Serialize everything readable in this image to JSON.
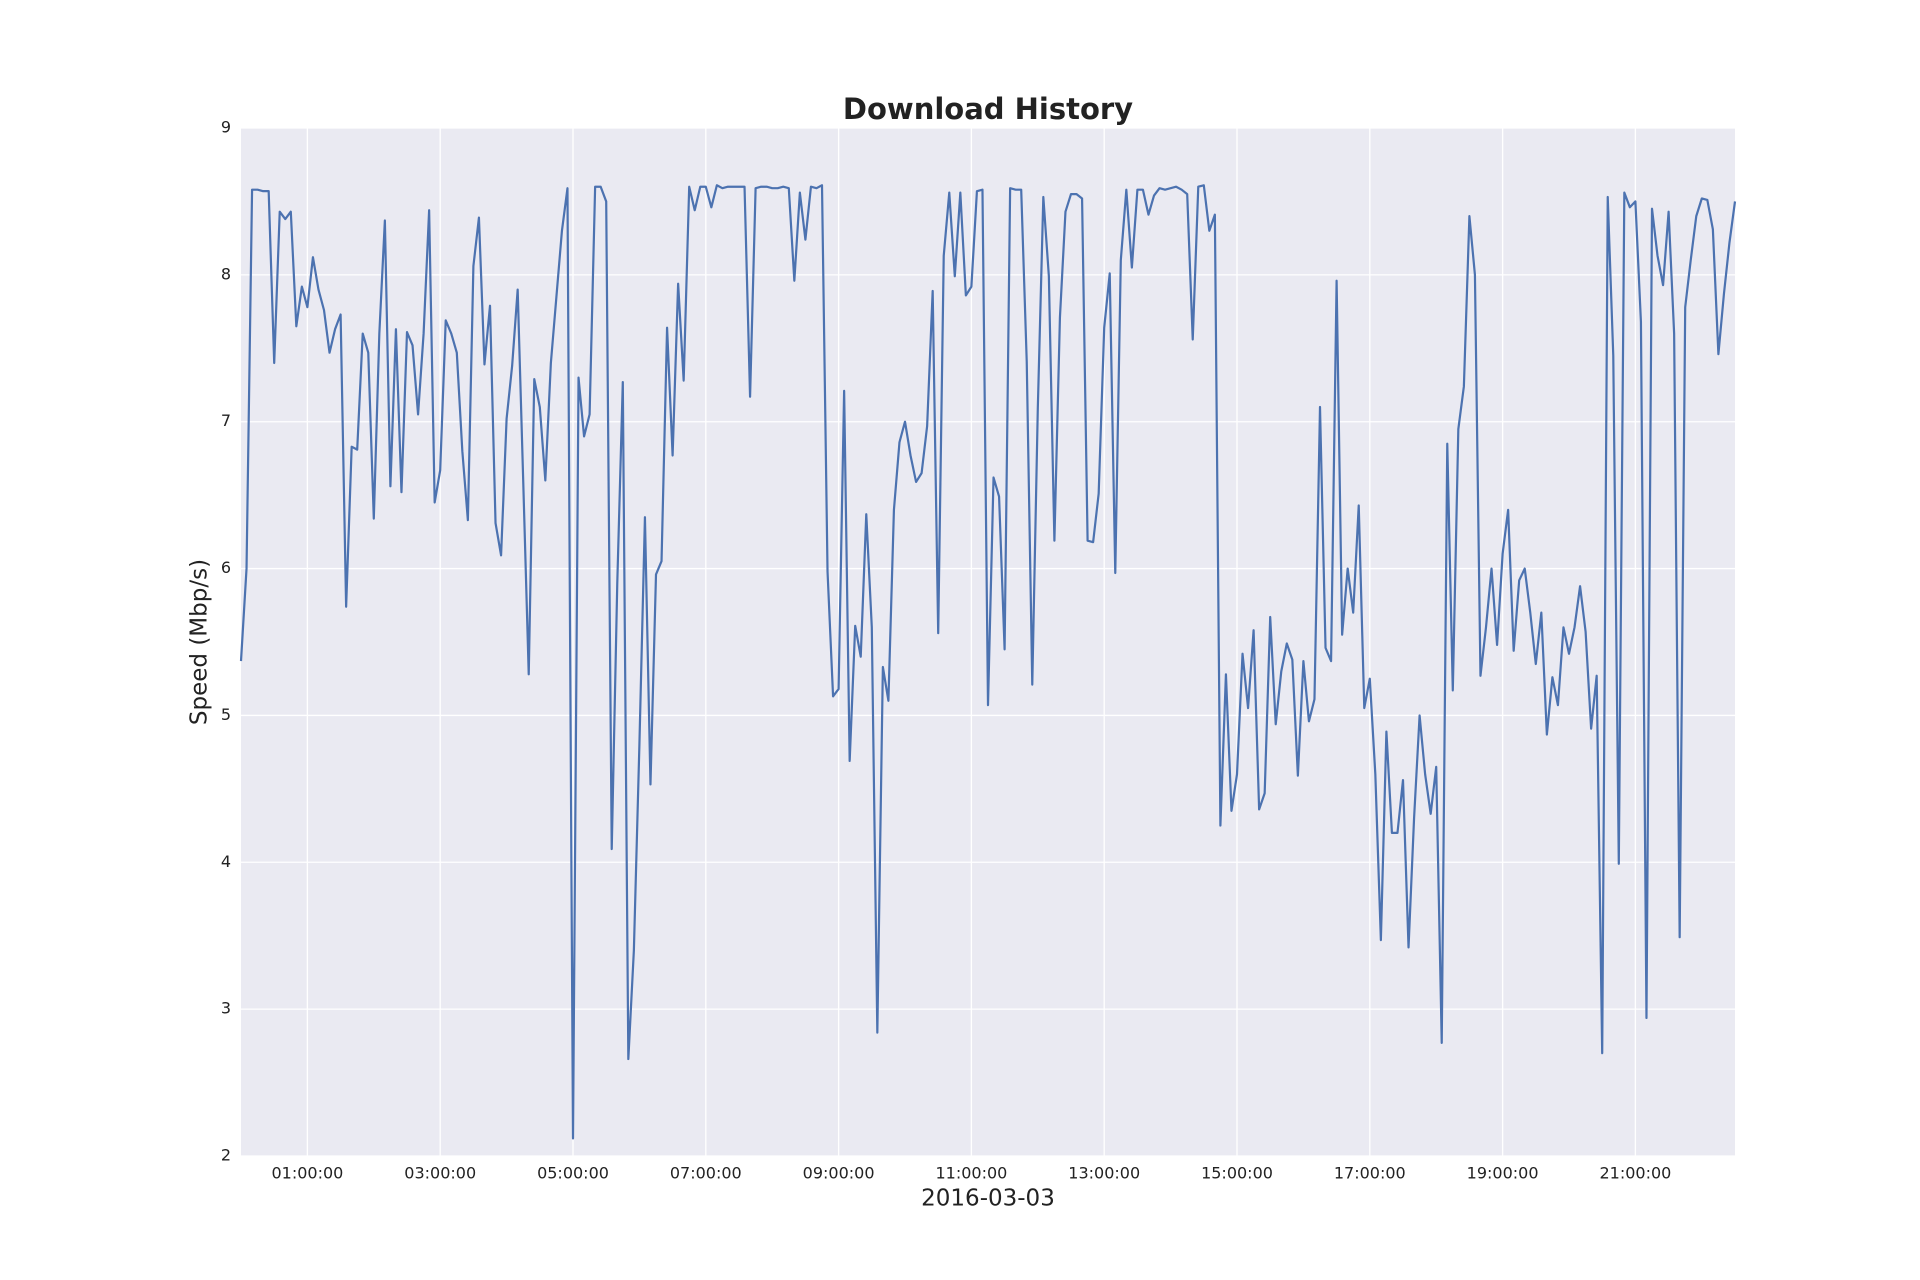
{
  "chart_data": {
    "type": "line",
    "title": "Download History",
    "xlabel": "2016-03-03",
    "ylabel": "Speed (Mbp/s)",
    "xlim": [
      "00:00:00",
      "22:30:00"
    ],
    "xticks": [
      "01:00:00",
      "03:00:00",
      "05:00:00",
      "07:00:00",
      "09:00:00",
      "11:00:00",
      "13:00:00",
      "15:00:00",
      "17:00:00",
      "19:00:00",
      "21:00:00"
    ],
    "ylim": [
      2,
      9
    ],
    "yticks": [
      2,
      3,
      4,
      5,
      6,
      7,
      8,
      9
    ],
    "grid": true,
    "x": [
      "00:00:00",
      "00:05:00",
      "00:10:00",
      "00:15:00",
      "00:20:00",
      "00:25:00",
      "00:30:00",
      "00:35:00",
      "00:40:00",
      "00:45:00",
      "00:50:00",
      "00:55:00",
      "01:00:00",
      "01:05:00",
      "01:10:00",
      "01:15:00",
      "01:20:00",
      "01:25:00",
      "01:30:00",
      "01:35:00",
      "01:40:00",
      "01:45:00",
      "01:50:00",
      "01:55:00",
      "02:00:00",
      "02:05:00",
      "02:10:00",
      "02:15:00",
      "02:20:00",
      "02:25:00",
      "02:30:00",
      "02:35:00",
      "02:40:00",
      "02:45:00",
      "02:50:00",
      "02:55:00",
      "03:00:00",
      "03:05:00",
      "03:10:00",
      "03:15:00",
      "03:20:00",
      "03:25:00",
      "03:30:00",
      "03:35:00",
      "03:40:00",
      "03:45:00",
      "03:50:00",
      "03:55:00",
      "04:00:00",
      "04:05:00",
      "04:10:00",
      "04:15:00",
      "04:20:00",
      "04:25:00",
      "04:30:00",
      "04:35:00",
      "04:40:00",
      "04:45:00",
      "04:50:00",
      "04:55:00",
      "05:00:00",
      "05:05:00",
      "05:10:00",
      "05:15:00",
      "05:20:00",
      "05:25:00",
      "05:30:00",
      "05:35:00",
      "05:40:00",
      "05:45:00",
      "05:50:00",
      "05:55:00",
      "06:00:00",
      "06:05:00",
      "06:10:00",
      "06:15:00",
      "06:20:00",
      "06:25:00",
      "06:30:00",
      "06:35:00",
      "06:40:00",
      "06:45:00",
      "06:50:00",
      "06:55:00",
      "07:00:00",
      "07:05:00",
      "07:10:00",
      "07:15:00",
      "07:20:00",
      "07:25:00",
      "07:30:00",
      "07:35:00",
      "07:40:00",
      "07:45:00",
      "07:50:00",
      "07:55:00",
      "08:00:00",
      "08:05:00",
      "08:10:00",
      "08:15:00",
      "08:20:00",
      "08:25:00",
      "08:30:00",
      "08:35:00",
      "08:40:00",
      "08:45:00",
      "08:50:00",
      "08:55:00",
      "09:00:00",
      "09:05:00",
      "09:10:00",
      "09:15:00",
      "09:20:00",
      "09:25:00",
      "09:30:00",
      "09:35:00",
      "09:40:00",
      "09:45:00",
      "09:50:00",
      "09:55:00",
      "10:00:00",
      "10:05:00",
      "10:10:00",
      "10:15:00",
      "10:20:00",
      "10:25:00",
      "10:30:00",
      "10:35:00",
      "10:40:00",
      "10:45:00",
      "10:50:00",
      "10:55:00",
      "11:00:00",
      "11:05:00",
      "11:10:00",
      "11:15:00",
      "11:20:00",
      "11:25:00",
      "11:30:00",
      "11:35:00",
      "11:40:00",
      "11:45:00",
      "11:50:00",
      "11:55:00",
      "12:00:00",
      "12:05:00",
      "12:10:00",
      "12:15:00",
      "12:20:00",
      "12:25:00",
      "12:30:00",
      "12:35:00",
      "12:40:00",
      "12:45:00",
      "12:50:00",
      "12:55:00",
      "13:00:00",
      "13:05:00",
      "13:10:00",
      "13:15:00",
      "13:20:00",
      "13:25:00",
      "13:30:00",
      "13:35:00",
      "13:40:00",
      "13:45:00",
      "13:50:00",
      "13:55:00",
      "14:00:00",
      "14:05:00",
      "14:10:00",
      "14:15:00",
      "14:20:00",
      "14:25:00",
      "14:30:00",
      "14:35:00",
      "14:40:00",
      "14:45:00",
      "14:50:00",
      "14:55:00",
      "15:00:00",
      "15:05:00",
      "15:10:00",
      "15:15:00",
      "15:20:00",
      "15:25:00",
      "15:30:00",
      "15:35:00",
      "15:40:00",
      "15:45:00",
      "15:50:00",
      "15:55:00",
      "16:00:00",
      "16:05:00",
      "16:10:00",
      "16:15:00",
      "16:20:00",
      "16:25:00",
      "16:30:00",
      "16:35:00",
      "16:40:00",
      "16:45:00",
      "16:50:00",
      "16:55:00",
      "17:00:00",
      "17:05:00",
      "17:10:00",
      "17:15:00",
      "17:20:00",
      "17:25:00",
      "17:30:00",
      "17:35:00",
      "17:40:00",
      "17:45:00",
      "17:50:00",
      "17:55:00",
      "18:00:00",
      "18:05:00",
      "18:10:00",
      "18:15:00",
      "18:20:00",
      "18:25:00",
      "18:30:00",
      "18:35:00",
      "18:40:00",
      "18:45:00",
      "18:50:00",
      "18:55:00",
      "19:00:00",
      "19:05:00",
      "19:10:00",
      "19:15:00",
      "19:20:00",
      "19:25:00",
      "19:30:00",
      "19:35:00",
      "19:40:00",
      "19:45:00",
      "19:50:00",
      "19:55:00",
      "20:00:00",
      "20:05:00",
      "20:10:00",
      "20:15:00",
      "20:20:00",
      "20:25:00",
      "20:30:00",
      "20:35:00",
      "20:40:00",
      "20:45:00",
      "20:50:00",
      "20:55:00",
      "21:00:00",
      "21:05:00",
      "21:10:00",
      "21:15:00",
      "21:20:00",
      "21:25:00",
      "21:30:00",
      "21:35:00",
      "21:40:00",
      "21:45:00",
      "21:50:00",
      "21:55:00",
      "22:00:00",
      "22:05:00",
      "22:10:00",
      "22:15:00",
      "22:20:00",
      "22:25:00",
      "22:30:00"
    ],
    "series": [
      {
        "color": "#4c72b0",
        "values": [
          5.37,
          6.0,
          8.58,
          8.58,
          8.57,
          8.57,
          7.4,
          8.43,
          8.38,
          8.43,
          7.65,
          7.92,
          7.78,
          8.12,
          7.9,
          7.76,
          7.47,
          7.63,
          7.73,
          5.74,
          6.83,
          6.81,
          7.6,
          7.47,
          6.34,
          7.6,
          8.37,
          6.56,
          7.63,
          6.52,
          7.61,
          7.52,
          7.05,
          7.6,
          8.44,
          6.45,
          6.67,
          7.69,
          7.6,
          7.47,
          6.8,
          6.33,
          8.06,
          8.39,
          7.39,
          7.79,
          6.31,
          6.09,
          7.02,
          7.38,
          7.9,
          6.6,
          5.28,
          7.29,
          7.1,
          6.6,
          7.4,
          7.85,
          8.3,
          8.59,
          2.12,
          7.3,
          6.9,
          7.05,
          8.6,
          8.6,
          8.5,
          4.09,
          5.9,
          7.27,
          2.66,
          3.4,
          4.8,
          6.35,
          4.53,
          5.96,
          6.05,
          7.64,
          6.77,
          7.94,
          7.28,
          8.6,
          8.44,
          8.6,
          8.6,
          8.46,
          8.61,
          8.59,
          8.6,
          8.6,
          8.6,
          8.6,
          7.17,
          8.59,
          8.6,
          8.6,
          8.59,
          8.59,
          8.6,
          8.59,
          7.96,
          8.56,
          8.24,
          8.6,
          8.59,
          8.61,
          5.98,
          5.13,
          5.18,
          7.21,
          4.69,
          5.61,
          5.4,
          6.37,
          5.6,
          2.84,
          5.33,
          5.1,
          6.4,
          6.86,
          7.0,
          6.77,
          6.59,
          6.65,
          6.97,
          7.89,
          5.56,
          8.13,
          8.56,
          7.99,
          8.56,
          7.86,
          7.92,
          8.57,
          8.58,
          5.07,
          6.62,
          6.49,
          5.45,
          8.59,
          8.58,
          8.58,
          7.41,
          5.21,
          7.09,
          8.53,
          7.99,
          6.19,
          7.71,
          8.43,
          8.55,
          8.55,
          8.52,
          6.19,
          6.18,
          6.51,
          7.64,
          8.01,
          5.97,
          8.1,
          8.58,
          8.05,
          8.58,
          8.58,
          8.41,
          8.54,
          8.59,
          8.58,
          8.59,
          8.6,
          8.58,
          8.55,
          7.56,
          8.6,
          8.61,
          8.3,
          8.41,
          4.25,
          5.28,
          4.35,
          4.6,
          5.42,
          5.05,
          5.58,
          4.36,
          4.47,
          5.67,
          4.94,
          5.3,
          5.49,
          5.38,
          4.59,
          5.37,
          4.96,
          5.11,
          7.1,
          5.46,
          5.37,
          7.96,
          5.55,
          6.0,
          5.7,
          6.43,
          5.05,
          5.25,
          4.6,
          3.47,
          4.89,
          4.2,
          4.2,
          4.56,
          3.42,
          4.3,
          5.0,
          4.6,
          4.33,
          4.65,
          2.77,
          6.85,
          5.17,
          6.95,
          7.24,
          8.4,
          8.0,
          5.27,
          5.6,
          6.0,
          5.48,
          6.1,
          6.4,
          5.44,
          5.92,
          6.0,
          5.7,
          5.35,
          5.7,
          4.87,
          5.26,
          5.07,
          5.6,
          5.42,
          5.6,
          5.88,
          5.57,
          4.91,
          5.27,
          2.7,
          8.53,
          7.45,
          3.99,
          8.56,
          8.46,
          8.5,
          7.68,
          2.94,
          8.45,
          8.13,
          7.93,
          8.43,
          7.6,
          3.49,
          7.78,
          8.1,
          8.4,
          8.52,
          8.51,
          8.31,
          7.46,
          7.87,
          8.22,
          8.5
        ]
      }
    ]
  }
}
